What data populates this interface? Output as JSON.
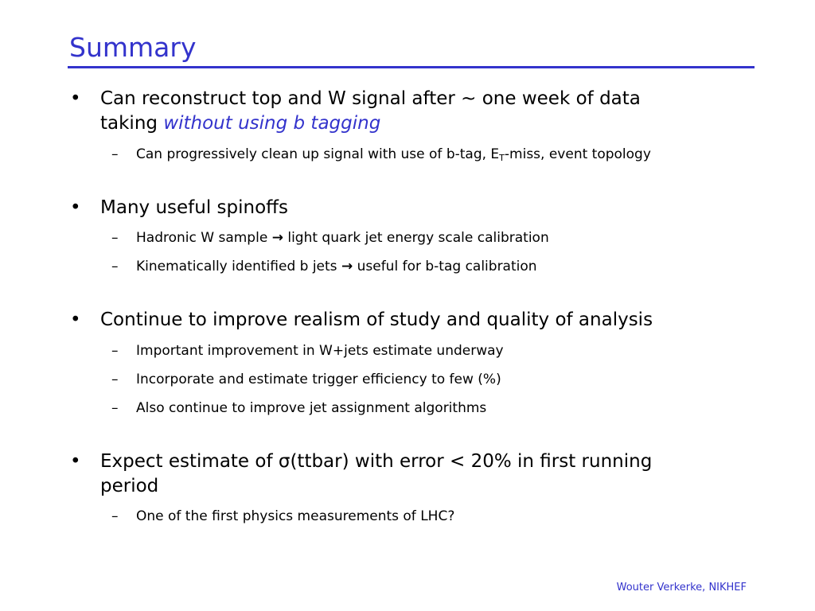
{
  "slide": {
    "title": "Summary",
    "footer": "Wouter Verkerke, NIKHEF",
    "bullet_glyph": "•",
    "dash_glyph": "–",
    "arrow_glyph": "→",
    "title_color": "#3333cc"
  },
  "bullets": [
    {
      "text_line1": "Can reconstruct top and W signal after ~ one week of data",
      "text_line2_plain": "taking ",
      "text_line2_em": "without using b tagging",
      "subs": [
        {
          "before": "Can progressively clean up signal with use of b-tag, E",
          "subscript": "T",
          "after": "-miss, event topology"
        }
      ]
    },
    {
      "text": "Many useful spinoffs",
      "subs": [
        {
          "before": "Hadronic W sample",
          "after": "light quark jet energy scale calibration"
        },
        {
          "before": "Kinematically identified b jets",
          "after": "useful for b-tag calibration"
        }
      ]
    },
    {
      "text": "Continue to improve realism of study and quality of analysis",
      "subs": [
        {
          "text": "Important improvement in W+jets estimate underway"
        },
        {
          "text": "Incorporate and estimate trigger efficiency to few (%)"
        },
        {
          "text": "Also continue to improve jet assignment algorithms"
        }
      ]
    },
    {
      "text_before_sigma": "Expect estimate of ",
      "sigma": "σ",
      "text_after_sigma": "(ttbar) with error < 20% in first running",
      "text_line2": "period",
      "subs": [
        {
          "text": "One of the first physics measurements of LHC?"
        }
      ]
    }
  ]
}
